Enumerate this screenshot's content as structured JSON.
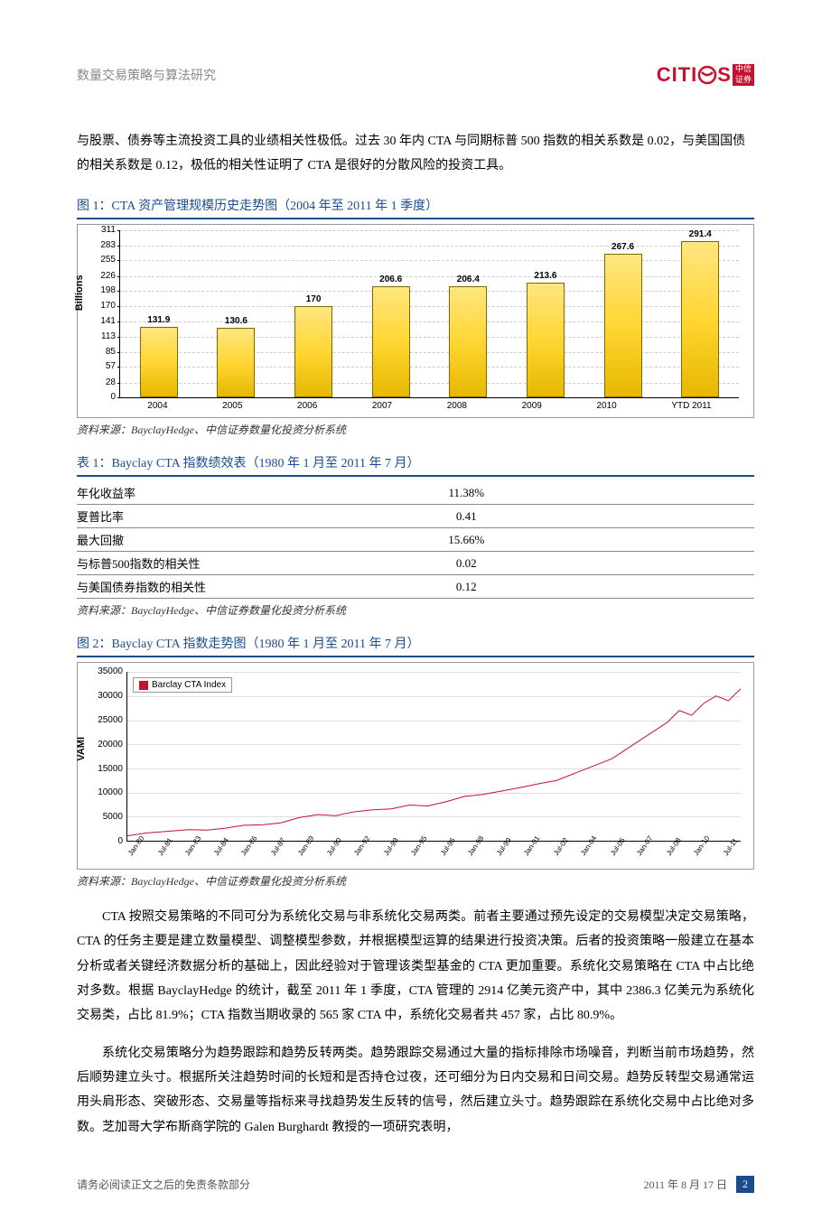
{
  "header": {
    "title": "数量交易策略与算法研究",
    "logo_text": "CITI",
    "logo_line1": "中信",
    "logo_line2": "证券"
  },
  "intro": "与股票、债券等主流投资工具的业绩相关性极低。过去 30 年内 CTA 与同期标普 500 指数的相关系数是 0.02，与美国国债的相关系数是 0.12，极低的相关性证明了 CTA 是很好的分散风险的投资工具。",
  "fig1": {
    "title": "图 1：CTA 资产管理规模历史走势图（2004 年至 2011 年 1 季度）",
    "y_label": "Billions",
    "y_max": 311,
    "y_ticks": [
      311,
      283,
      255,
      226,
      198,
      170,
      141,
      113,
      85,
      57,
      28,
      0
    ],
    "bars": [
      {
        "label": "2004",
        "value": 131.9
      },
      {
        "label": "2005",
        "value": 130.6
      },
      {
        "label": "2006",
        "value": 170
      },
      {
        "label": "2007",
        "value": 206.6
      },
      {
        "label": "2008",
        "value": 206.4
      },
      {
        "label": "2009",
        "value": 213.6
      },
      {
        "label": "2010",
        "value": 267.6
      },
      {
        "label": "YTD 2011",
        "value": 291.4
      }
    ],
    "source": "资料来源：BayclayHedge、中信证券数量化投资分析系统"
  },
  "table1": {
    "title": "表 1：Bayclay CTA 指数绩效表（1980 年 1 月至 2011 年 7 月）",
    "rows": [
      {
        "k": "年化收益率",
        "v": "11.38%"
      },
      {
        "k": "夏普比率",
        "v": "0.41"
      },
      {
        "k": "最大回撤",
        "v": "15.66%"
      },
      {
        "k": "与标普500指数的相关性",
        "v": "0.02"
      },
      {
        "k": "与美国债券指数的相关性",
        "v": "0.12"
      }
    ],
    "source": "资料来源：BayclayHedge、中信证券数量化投资分析系统"
  },
  "fig2": {
    "title": "图 2：Bayclay CTA 指数走势图（1980 年 1 月至 2011 年 7 月）",
    "y_label": "VAMI",
    "legend": "Barclay CTA Index",
    "y_max": 35000,
    "y_ticks": [
      35000,
      30000,
      25000,
      20000,
      15000,
      10000,
      5000,
      0
    ],
    "x_ticks": [
      "Jan-80",
      "Jul-81",
      "Jan-83",
      "Jul-84",
      "Jan-86",
      "Jul-87",
      "Jan-89",
      "Jul-90",
      "Jan-92",
      "Jul-93",
      "Jan-95",
      "Jul-96",
      "Jan-98",
      "Jul-99",
      "Jan-01",
      "Jul-02",
      "Jan-04",
      "Jul-05",
      "Jan-07",
      "Jul-08",
      "Jan-10",
      "Jul-11"
    ],
    "line_color": "#c8102e",
    "series": [
      {
        "x": 0.0,
        "y": 1000
      },
      {
        "x": 0.03,
        "y": 1600
      },
      {
        "x": 0.06,
        "y": 1900
      },
      {
        "x": 0.1,
        "y": 2300
      },
      {
        "x": 0.13,
        "y": 2200
      },
      {
        "x": 0.16,
        "y": 2600
      },
      {
        "x": 0.19,
        "y": 3200
      },
      {
        "x": 0.22,
        "y": 3300
      },
      {
        "x": 0.25,
        "y": 3700
      },
      {
        "x": 0.28,
        "y": 4800
      },
      {
        "x": 0.31,
        "y": 5400
      },
      {
        "x": 0.34,
        "y": 5200
      },
      {
        "x": 0.37,
        "y": 6000
      },
      {
        "x": 0.4,
        "y": 6400
      },
      {
        "x": 0.43,
        "y": 6600
      },
      {
        "x": 0.46,
        "y": 7400
      },
      {
        "x": 0.49,
        "y": 7200
      },
      {
        "x": 0.52,
        "y": 8100
      },
      {
        "x": 0.55,
        "y": 9200
      },
      {
        "x": 0.58,
        "y": 9600
      },
      {
        "x": 0.61,
        "y": 10300
      },
      {
        "x": 0.64,
        "y": 11000
      },
      {
        "x": 0.67,
        "y": 11800
      },
      {
        "x": 0.7,
        "y": 12500
      },
      {
        "x": 0.73,
        "y": 14000
      },
      {
        "x": 0.76,
        "y": 15500
      },
      {
        "x": 0.79,
        "y": 17000
      },
      {
        "x": 0.82,
        "y": 19500
      },
      {
        "x": 0.85,
        "y": 22000
      },
      {
        "x": 0.88,
        "y": 24500
      },
      {
        "x": 0.9,
        "y": 27000
      },
      {
        "x": 0.92,
        "y": 26000
      },
      {
        "x": 0.94,
        "y": 28500
      },
      {
        "x": 0.96,
        "y": 30000
      },
      {
        "x": 0.98,
        "y": 29000
      },
      {
        "x": 1.0,
        "y": 31500
      }
    ],
    "source": "资料来源：BayclayHedge、中信证券数量化投资分析系统"
  },
  "para1": "CTA 按照交易策略的不同可分为系统化交易与非系统化交易两类。前者主要通过预先设定的交易模型决定交易策略，CTA 的任务主要是建立数量模型、调整模型参数，并根据模型运算的结果进行投资决策。后者的投资策略一般建立在基本分析或者关键经济数据分析的基础上，因此经验对于管理该类型基金的 CTA 更加重要。系统化交易策略在 CTA 中占比绝对多数。根据 BayclayHedge 的统计，截至 2011 年 1 季度，CTA 管理的 2914 亿美元资产中，其中 2386.3 亿美元为系统化交易类，占比 81.9%；CTA 指数当期收录的 565 家 CTA 中，系统化交易者共 457 家，占比 80.9%。",
  "para2": "系统化交易策略分为趋势跟踪和趋势反转两类。趋势跟踪交易通过大量的指标排除市场噪音，判断当前市场趋势，然后顺势建立头寸。根据所关注趋势时间的长短和是否持仓过夜，还可细分为日内交易和日间交易。趋势反转型交易通常运用头肩形态、突破形态、交易量等指标来寻找趋势发生反转的信号，然后建立头寸。趋势跟踪在系统化交易中占比绝对多数。芝加哥大学布斯商学院的 Galen Burghardt 教授的一项研究表明，",
  "footer": {
    "left": "请务必阅读正文之后的免责条款部分",
    "date": "2011 年 8 月 17 日",
    "page": "2"
  }
}
